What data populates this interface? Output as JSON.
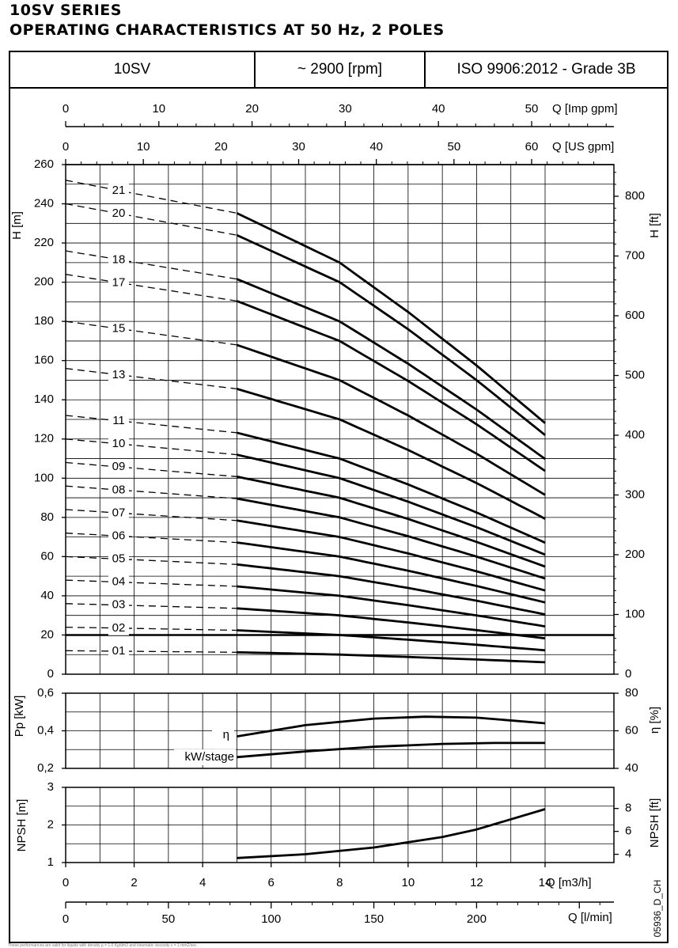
{
  "page": {
    "title_line1": "10SV SERIES",
    "title_line2": "OPERATING CHARACTERISTICS AT 50 Hz, 2 POLES",
    "header": {
      "model": "10SV",
      "speed": "~ 2900 [rpm]",
      "standard": "ISO 9906:2012 - Grade 3B"
    },
    "drawing_code": "05936_D_CH",
    "footnote": "These performances are valid for liquids with density ρ = 1.0 Kg/dm3 and kinematic viscosity ν = 1 mm2/sec."
  },
  "chart_data": [
    {
      "type": "line",
      "name": "head",
      "ylabel": "H [m]",
      "y2label": "H [ft]",
      "ylim": [
        0,
        260
      ],
      "yticks": [
        0,
        20,
        40,
        60,
        80,
        100,
        120,
        140,
        160,
        180,
        200,
        220,
        240,
        260
      ],
      "y2ticks": [
        0,
        100,
        200,
        300,
        400,
        500,
        600,
        700,
        800
      ],
      "xlim": [
        0,
        15.5
      ],
      "operating_range": [
        5,
        14
      ],
      "top_axes": [
        {
          "label": "Q [Imp gpm]",
          "ticks": [
            0,
            10,
            20,
            30,
            40,
            50
          ]
        },
        {
          "label": "Q [US gpm]",
          "ticks": [
            0,
            10,
            20,
            30,
            40,
            50,
            60
          ]
        }
      ],
      "shutoff_head_per_stage": 12.0,
      "stage_labels": [
        "01",
        "02",
        "03",
        "04",
        "05",
        "06",
        "07",
        "08",
        "09",
        "10",
        "11",
        "13",
        "15",
        "17",
        "18",
        "20",
        "21"
      ],
      "series": [
        {
          "label": "01",
          "stages": 1
        },
        {
          "label": "02",
          "stages": 2
        },
        {
          "label": "03",
          "stages": 3
        },
        {
          "label": "04",
          "stages": 4
        },
        {
          "label": "05",
          "stages": 5
        },
        {
          "label": "06",
          "stages": 6
        },
        {
          "label": "07",
          "stages": 7
        },
        {
          "label": "08",
          "stages": 8
        },
        {
          "label": "09",
          "stages": 9
        },
        {
          "label": "10",
          "stages": 10
        },
        {
          "label": "11",
          "stages": 11
        },
        {
          "label": "13",
          "stages": 13
        },
        {
          "label": "15",
          "stages": 15
        },
        {
          "label": "17",
          "stages": 17
        },
        {
          "label": "18",
          "stages": 18
        },
        {
          "label": "20",
          "stages": 20
        },
        {
          "label": "21",
          "stages": 21
        }
      ],
      "stage_curve": {
        "Q": [
          0,
          5,
          8,
          10,
          12,
          14
        ],
        "H": [
          12.0,
          11.2,
          10.0,
          8.8,
          7.5,
          6.1
        ]
      }
    },
    {
      "type": "line",
      "name": "power_efficiency",
      "ylabel": "Pp [kW]",
      "y2label": "η [%]",
      "ylim": [
        0.2,
        0.6
      ],
      "yticks": [
        "0,2",
        "0,4",
        "0,6"
      ],
      "y2lim": [
        40,
        80
      ],
      "y2ticks": [
        40,
        60,
        80
      ],
      "series": [
        {
          "name": "η",
          "Q": [
            5,
            7,
            9,
            10.5,
            12,
            14
          ],
          "values": [
            57,
            63,
            66.5,
            67.5,
            67,
            64
          ]
        },
        {
          "name": "kW/stage",
          "Q": [
            5,
            7,
            9,
            11,
            12.5,
            14
          ],
          "values": [
            0.26,
            0.29,
            0.315,
            0.33,
            0.335,
            0.335
          ]
        }
      ]
    },
    {
      "type": "line",
      "name": "npsh",
      "ylabel": "NPSH [m]",
      "y2label": "NPSH [ft]",
      "ylim": [
        1,
        3
      ],
      "yticks": [
        1,
        2,
        3
      ],
      "y2ticks": [
        4,
        6,
        8
      ],
      "series": [
        {
          "name": "NPSH",
          "Q": [
            5,
            7,
            9,
            11,
            12,
            14
          ],
          "values": [
            1.12,
            1.22,
            1.4,
            1.68,
            1.88,
            2.42
          ]
        }
      ],
      "xlabel": "Q [m3/h]",
      "xticks": [
        0,
        2,
        4,
        6,
        8,
        10,
        12,
        14
      ],
      "x2label": "Q [l/min]",
      "x2ticks": [
        0,
        50,
        100,
        150,
        200
      ]
    }
  ]
}
